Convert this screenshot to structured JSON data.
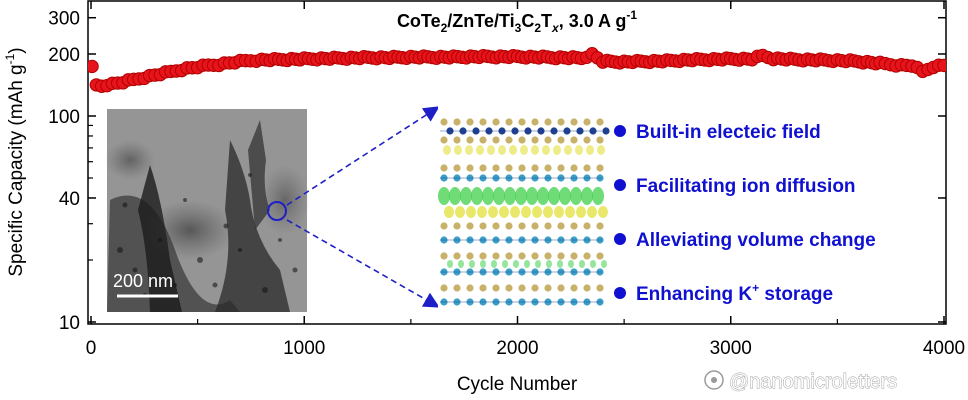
{
  "chart_data": {
    "type": "scatter",
    "title_parts": {
      "t1": "CoTe",
      "s1": "2",
      "t2": "/ZnTe/Ti",
      "s2": "3",
      "t3": "C",
      "s3": "2",
      "t4": "T",
      "s4": "x",
      "t5": ", 3.0 A g",
      "sup": "-1"
    },
    "xlabel": "Cycle Number",
    "ylabel_parts": {
      "main": "Specific Capacity (mAh g",
      "sup": "-1",
      "close": ")"
    },
    "xlim": [
      0,
      4000
    ],
    "ylim": [
      10,
      350
    ],
    "y_scale": "log",
    "x_ticks": [
      0,
      1000,
      2000,
      3000,
      4000
    ],
    "x_tick_labels": [
      "0",
      "1000",
      "2000",
      "3000",
      "4000"
    ],
    "y_ticks": [
      10,
      40,
      100,
      200,
      300
    ],
    "y_tick_labels": [
      "10",
      "40",
      "100",
      "200",
      "300"
    ],
    "marker_color": "#e8141c",
    "marker_edge": "#b00000",
    "series": [
      {
        "x": [
          5,
          25,
          50,
          75,
          100,
          150,
          200,
          250,
          300,
          350,
          400,
          450,
          500,
          550,
          600,
          650,
          700,
          750,
          800,
          900,
          1000,
          1100,
          1200,
          1300,
          1400,
          1500,
          1600,
          1700,
          1800,
          1900,
          2000,
          2100,
          2200,
          2300,
          2350,
          2400,
          2500,
          2600,
          2700,
          2800,
          2900,
          3000,
          3100,
          3150,
          3200,
          3300,
          3400,
          3500,
          3600,
          3700,
          3750,
          3800,
          3850,
          3900,
          3950,
          4000
        ],
        "y": [
          172,
          141,
          140,
          142,
          143,
          146,
          150,
          154,
          158,
          162,
          166,
          170,
          173,
          176,
          178,
          181,
          184,
          186,
          187,
          188,
          189,
          190,
          191,
          192,
          192,
          193,
          193,
          193,
          194,
          194,
          194,
          193,
          192,
          191,
          199,
          184,
          183,
          184,
          185,
          187,
          188,
          189,
          189,
          196,
          190,
          188,
          187,
          186,
          184,
          180,
          178,
          176,
          176,
          164,
          174,
          176
        ]
      }
    ]
  },
  "inset": {
    "scale_bar_label": "200 nm",
    "features": [
      "Built-in electeic field",
      "Facilitating ion diffusion",
      "Alleviating volume change"
    ],
    "feature4_parts": {
      "main": "Enhancing K",
      "sup": "+",
      "rest": " storage"
    },
    "feature_color": "#1010d0"
  },
  "watermark": "@nanomicroletters"
}
